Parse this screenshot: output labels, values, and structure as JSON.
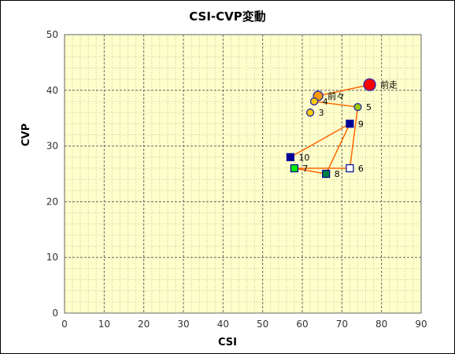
{
  "chart_data": {
    "type": "scatter",
    "title": "CSI-CVP変動",
    "xlabel": "CSI",
    "ylabel": "CVP",
    "xlim": [
      0,
      90
    ],
    "ylim": [
      0,
      50
    ],
    "x_ticks": [
      "0",
      "10",
      "20",
      "30",
      "40",
      "50",
      "60",
      "70",
      "80",
      "90"
    ],
    "y_ticks": [
      "0",
      "10",
      "20",
      "30",
      "40",
      "50"
    ],
    "grid": true,
    "background_color": "#ffffcc",
    "line_color": "#ff6600",
    "points": [
      {
        "label": "前走",
        "x": 77,
        "y": 41,
        "marker": "circle",
        "size": "large",
        "fill": "#ff0000"
      },
      {
        "label": "前々",
        "x": 64,
        "y": 39,
        "marker": "circle",
        "size": "medium",
        "fill": "#ff9900"
      },
      {
        "label": "3",
        "x": 62,
        "y": 36,
        "marker": "circle",
        "size": "small",
        "fill": "#ffcc00"
      },
      {
        "label": "4",
        "x": 63,
        "y": 38,
        "marker": "circle",
        "size": "small",
        "fill": "#ffcc00"
      },
      {
        "label": "5",
        "x": 74,
        "y": 37,
        "marker": "circle",
        "size": "small",
        "fill": "#99cc00"
      },
      {
        "label": "6",
        "x": 72,
        "y": 26,
        "marker": "square",
        "size": "small",
        "fill": "#ffffff"
      },
      {
        "label": "7",
        "x": 58,
        "y": 26,
        "marker": "square",
        "size": "small",
        "fill": "#00ee00"
      },
      {
        "label": "8",
        "x": 66,
        "y": 25,
        "marker": "square",
        "size": "small",
        "fill": "#008040"
      },
      {
        "label": "9",
        "x": 72,
        "y": 34,
        "marker": "square",
        "size": "small",
        "fill": "#000099"
      },
      {
        "label": "10",
        "x": 57,
        "y": 28,
        "marker": "square",
        "size": "small",
        "fill": "#000099"
      }
    ],
    "connection_order": [
      "10",
      "9",
      "8",
      "7",
      "6",
      "5",
      "4",
      "前々",
      "前走"
    ]
  }
}
